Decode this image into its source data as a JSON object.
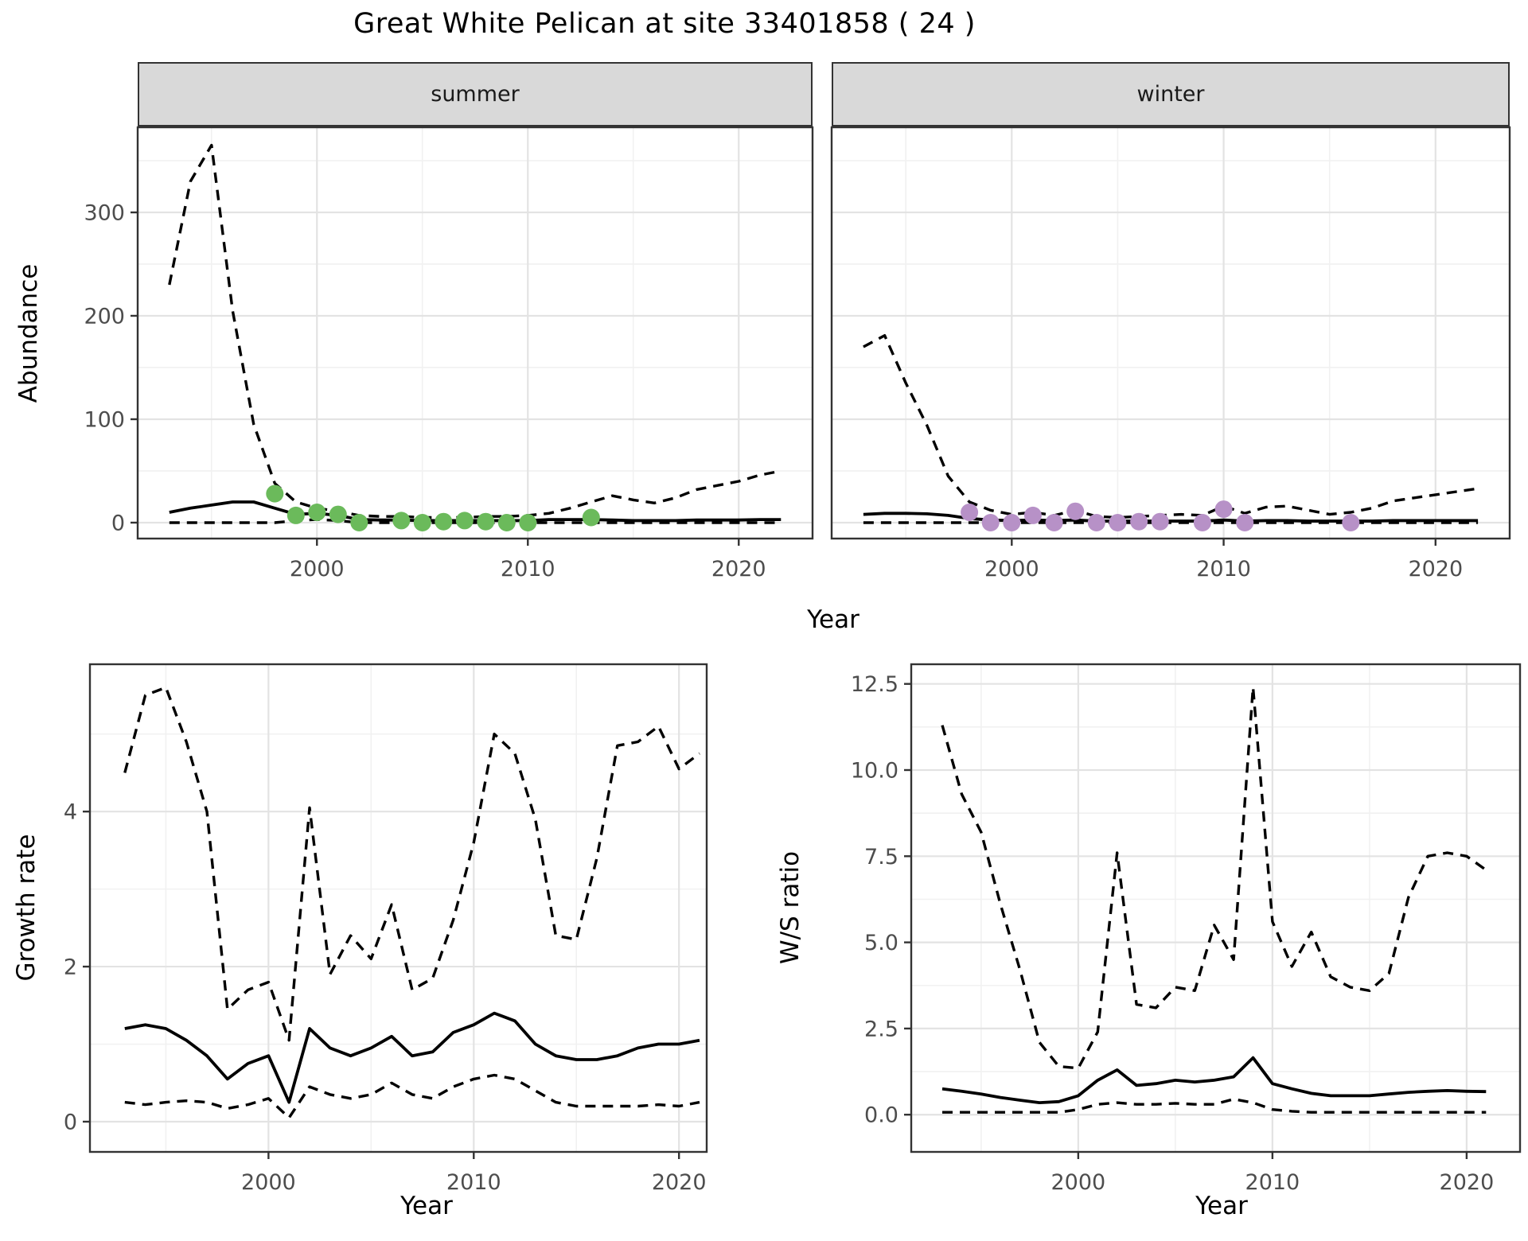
{
  "title": "Great White Pelican at site 33401858 ( 24 )",
  "axis_titles": {
    "y_top": "Abundance",
    "x_top": "Year",
    "y_bottom_left": "Growth rate",
    "x_bottom_left": "Year",
    "y_bottom_right": "W/S ratio",
    "x_bottom_right": "Year"
  },
  "colors": {
    "summer_point": "#6bba5b",
    "winter_point": "#b791c7",
    "line": "#000000",
    "strip_bg": "#d9d9d9",
    "panel_border": "#333333",
    "grid_major": "#e3e3e3",
    "grid_minor": "#f1f1f1",
    "tick_text": "#4d4d4d"
  },
  "chart_data": [
    {
      "id": "abundance_summer",
      "type": "line",
      "facet": "summer",
      "ylabel": "Abundance",
      "xlabel": "Year",
      "x": [
        1993,
        1994,
        1995,
        1996,
        1997,
        1998,
        1999,
        2000,
        2001,
        2002,
        2003,
        2004,
        2005,
        2006,
        2007,
        2008,
        2009,
        2010,
        2011,
        2012,
        2013,
        2014,
        2015,
        2016,
        2017,
        2018,
        2019,
        2020,
        2021,
        2022
      ],
      "series": [
        {
          "name": "upper_ci",
          "style": "dashed",
          "values": [
            230,
            330,
            365,
            205,
            95,
            38,
            20,
            14,
            11,
            7,
            6,
            6,
            5,
            5,
            5,
            6,
            6,
            7,
            9,
            14,
            20,
            26,
            22,
            19,
            24,
            32,
            36,
            40,
            46,
            50
          ]
        },
        {
          "name": "lower_ci",
          "style": "dashed",
          "values": [
            0,
            0,
            0,
            0,
            0,
            0,
            2,
            3,
            2,
            0,
            0,
            0,
            0,
            0,
            0,
            0,
            0,
            0,
            0,
            0,
            0,
            0,
            0,
            0,
            0,
            0,
            0,
            0,
            0,
            0
          ]
        },
        {
          "name": "fit",
          "style": "solid",
          "values": [
            10,
            14,
            17,
            20,
            20,
            14,
            8,
            9,
            7,
            3,
            2.5,
            2.5,
            2,
            2,
            2,
            2,
            2,
            2,
            3,
            3,
            3,
            2.5,
            2,
            2,
            2,
            2.5,
            2.5,
            2.5,
            3,
            3
          ]
        }
      ],
      "points": {
        "name": "observed",
        "color_key": "summer_point",
        "xy": [
          [
            1998,
            28
          ],
          [
            1999,
            7
          ],
          [
            2000,
            10
          ],
          [
            2001,
            8
          ],
          [
            2002,
            0
          ],
          [
            2004,
            2
          ],
          [
            2005,
            0
          ],
          [
            2006,
            1
          ],
          [
            2007,
            2
          ],
          [
            2008,
            1
          ],
          [
            2009,
            0
          ],
          [
            2010,
            0
          ],
          [
            2013,
            5
          ]
        ]
      },
      "xlim": [
        1991.5,
        2023.5
      ],
      "ylim": [
        -15.4,
        382.3
      ],
      "x_ticks": {
        "values": [
          2000,
          2010,
          2020
        ],
        "labels": [
          "2000",
          "2010",
          "2020"
        ]
      },
      "x_minor": [
        1995,
        2005,
        2015
      ],
      "y_ticks": {
        "values": [
          0,
          100,
          200,
          300
        ],
        "labels": [
          "0",
          "100",
          "200",
          "300"
        ]
      },
      "y_minor": [
        50,
        150,
        250,
        350
      ]
    },
    {
      "id": "abundance_winter",
      "type": "line",
      "facet": "winter",
      "ylabel": "Abundance",
      "xlabel": "Year",
      "x": [
        1993,
        1994,
        1995,
        1996,
        1997,
        1998,
        1999,
        2000,
        2001,
        2002,
        2003,
        2004,
        2005,
        2006,
        2007,
        2008,
        2009,
        2010,
        2011,
        2012,
        2013,
        2014,
        2015,
        2016,
        2017,
        2018,
        2019,
        2020,
        2021,
        2022
      ],
      "series": [
        {
          "name": "upper_ci",
          "style": "dashed",
          "values": [
            170,
            181,
            135,
            94,
            45,
            20,
            12,
            8,
            10,
            7,
            12,
            6,
            5,
            6,
            7,
            8,
            7,
            16,
            9,
            15,
            16,
            12,
            8,
            10,
            14,
            21,
            24,
            27,
            30,
            33
          ]
        },
        {
          "name": "lower_ci",
          "style": "dashed",
          "values": [
            0,
            0,
            0,
            0,
            0,
            0,
            0,
            0,
            0,
            0,
            0,
            0,
            0,
            0,
            0,
            0,
            0,
            0,
            0,
            0,
            0,
            0,
            0,
            0,
            0,
            0,
            0,
            0,
            0,
            0
          ]
        },
        {
          "name": "fit",
          "style": "solid",
          "values": [
            8,
            9,
            9,
            8.5,
            7,
            4,
            2.5,
            2,
            2.5,
            2,
            2.5,
            1.5,
            1.5,
            1.5,
            1.5,
            1.5,
            1.5,
            2.5,
            1.5,
            2,
            2,
            1.5,
            1.5,
            1.5,
            1.5,
            2,
            2,
            2,
            2,
            2
          ]
        }
      ],
      "points": {
        "name": "observed",
        "color_key": "winter_point",
        "xy": [
          [
            1998,
            10
          ],
          [
            1999,
            0
          ],
          [
            2000,
            0
          ],
          [
            2001,
            7
          ],
          [
            2002,
            0
          ],
          [
            2003,
            11
          ],
          [
            2004,
            0
          ],
          [
            2005,
            0
          ],
          [
            2006,
            1
          ],
          [
            2007,
            1
          ],
          [
            2009,
            0
          ],
          [
            2010,
            13
          ],
          [
            2011,
            0
          ],
          [
            2016,
            0
          ]
        ]
      },
      "xlim": [
        1991.5,
        2023.5
      ],
      "ylim": [
        -15.4,
        382.3
      ],
      "x_ticks": {
        "values": [
          2000,
          2010,
          2020
        ],
        "labels": [
          "2000",
          "2010",
          "2020"
        ]
      },
      "x_minor": [
        1995,
        2005,
        2015
      ],
      "y_ticks": {
        "values": [],
        "labels": []
      },
      "y_minor": [
        50,
        150,
        250,
        350
      ],
      "y_grid_major": [
        0,
        100,
        200,
        300
      ]
    },
    {
      "id": "growth_rate",
      "type": "line",
      "ylabel": "Growth rate",
      "xlabel": "Year",
      "x": [
        1993,
        1994,
        1995,
        1996,
        1997,
        1998,
        1999,
        2000,
        2001,
        2002,
        2003,
        2004,
        2005,
        2006,
        2007,
        2008,
        2009,
        2010,
        2011,
        2012,
        2013,
        2014,
        2015,
        2016,
        2017,
        2018,
        2019,
        2020,
        2021
      ],
      "series": [
        {
          "name": "upper_ci",
          "style": "dashed",
          "values": [
            4.5,
            5.5,
            5.6,
            4.9,
            4.0,
            1.45,
            1.7,
            1.8,
            1.05,
            4.05,
            1.9,
            2.4,
            2.1,
            2.8,
            1.7,
            1.85,
            2.6,
            3.6,
            5.0,
            4.75,
            3.9,
            2.4,
            2.35,
            3.4,
            4.85,
            4.9,
            5.1,
            4.55,
            4.75
          ]
        },
        {
          "name": "lower_ci",
          "style": "dashed",
          "values": [
            0.25,
            0.22,
            0.25,
            0.27,
            0.25,
            0.17,
            0.22,
            0.3,
            0.05,
            0.45,
            0.35,
            0.3,
            0.35,
            0.5,
            0.35,
            0.3,
            0.45,
            0.55,
            0.6,
            0.55,
            0.4,
            0.25,
            0.2,
            0.2,
            0.2,
            0.2,
            0.22,
            0.2,
            0.25
          ]
        },
        {
          "name": "fit",
          "style": "solid",
          "values": [
            1.2,
            1.25,
            1.2,
            1.05,
            0.85,
            0.55,
            0.75,
            0.85,
            0.25,
            1.2,
            0.95,
            0.85,
            0.95,
            1.1,
            0.85,
            0.9,
            1.15,
            1.25,
            1.4,
            1.3,
            1.0,
            0.85,
            0.8,
            0.8,
            0.85,
            0.95,
            1.0,
            1.0,
            1.05
          ]
        }
      ],
      "xlim": [
        1991.3,
        2021.35
      ],
      "ylim": [
        -0.39,
        5.9
      ],
      "x_ticks": {
        "values": [
          2000,
          2010,
          2020
        ],
        "labels": [
          "2000",
          "2010",
          "2020"
        ]
      },
      "x_minor": [
        1995,
        2005,
        2015
      ],
      "y_ticks": {
        "values": [
          0,
          2,
          4
        ],
        "labels": [
          "0",
          "2",
          "4"
        ]
      },
      "y_minor": [
        1,
        3,
        5
      ]
    },
    {
      "id": "ws_ratio",
      "type": "line",
      "ylabel": "W/S ratio",
      "xlabel": "Year",
      "x": [
        1993,
        1994,
        1995,
        1996,
        1997,
        1998,
        1999,
        2000,
        2001,
        2002,
        2003,
        2004,
        2005,
        2006,
        2007,
        2008,
        2009,
        2010,
        2011,
        2012,
        2013,
        2014,
        2015,
        2016,
        2017,
        2018,
        2019,
        2020,
        2021
      ],
      "series": [
        {
          "name": "upper_ci",
          "style": "dashed",
          "values": [
            11.3,
            9.3,
            8.2,
            6.1,
            4.2,
            2.1,
            1.4,
            1.35,
            2.4,
            7.6,
            3.2,
            3.1,
            3.7,
            3.6,
            5.5,
            4.5,
            12.4,
            5.6,
            4.3,
            5.3,
            4.0,
            3.7,
            3.6,
            4.1,
            6.3,
            7.5,
            7.6,
            7.5,
            7.1
          ]
        },
        {
          "name": "lower_ci",
          "style": "dashed",
          "values": [
            0.07,
            0.07,
            0.07,
            0.07,
            0.07,
            0.07,
            0.07,
            0.15,
            0.3,
            0.35,
            0.3,
            0.3,
            0.33,
            0.3,
            0.3,
            0.45,
            0.35,
            0.15,
            0.1,
            0.07,
            0.07,
            0.07,
            0.07,
            0.07,
            0.07,
            0.07,
            0.07,
            0.07,
            0.07
          ]
        },
        {
          "name": "fit",
          "style": "solid",
          "values": [
            0.75,
            0.68,
            0.6,
            0.5,
            0.42,
            0.35,
            0.38,
            0.55,
            1.0,
            1.3,
            0.85,
            0.9,
            1.0,
            0.95,
            1.0,
            1.1,
            1.65,
            0.9,
            0.75,
            0.62,
            0.55,
            0.55,
            0.55,
            0.6,
            0.65,
            0.68,
            0.7,
            0.68,
            0.67
          ]
        }
      ],
      "xlim": [
        1991.4,
        2022.75
      ],
      "ylim": [
        -1.08,
        13.07
      ],
      "x_ticks": {
        "values": [
          2000,
          2010,
          2020
        ],
        "labels": [
          "2000",
          "2010",
          "2020"
        ]
      },
      "x_minor": [
        1995,
        2005,
        2015
      ],
      "y_ticks": {
        "values": [
          0,
          2.5,
          5,
          7.5,
          10,
          12.5
        ],
        "labels": [
          "0.0",
          "2.5",
          "5.0",
          "7.5",
          "10.0",
          "12.5"
        ]
      },
      "y_minor": [
        1.25,
        3.75,
        6.25,
        8.75,
        11.25
      ]
    }
  ]
}
